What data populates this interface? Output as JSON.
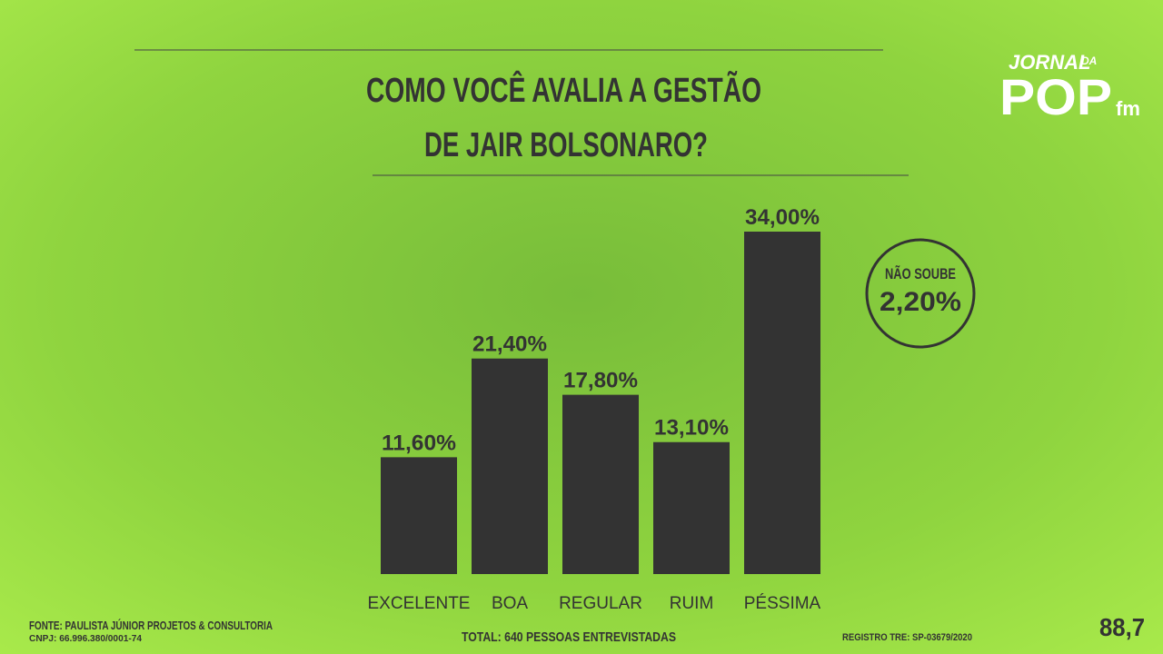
{
  "chart_data": {
    "type": "bar",
    "title": [
      "COMO VOCÊ AVALIA A GESTÃO",
      "DE JAIR BOLSONARO?"
    ],
    "categories": [
      "EXCELENTE",
      "BOA",
      "REGULAR",
      "RUIM",
      "PÉSSIMA"
    ],
    "values": [
      11.6,
      21.4,
      17.8,
      13.1,
      34.0
    ],
    "value_labels": [
      "11,60%",
      "21,40%",
      "17,80%",
      "13,10%",
      "34,00%"
    ],
    "color": "#333333",
    "annotation": {
      "label": "NÃO SOUBE",
      "value": 2.2,
      "value_label": "2,20%"
    },
    "footer": {
      "source": "FONTE: PAULISTA JÚNIOR PROJETOS & CONSULTORIA",
      "cnpj": "CNPJ: 66.996.380/0001-74",
      "total": "TOTAL: 640 PESSOAS ENTREVISTADAS",
      "registry": "REGISTRO TRE: SP-03679/2020"
    },
    "logo": {
      "top": "JORNAL",
      "small": "DA",
      "main": "POP",
      "suffix": "fm",
      "freq": "88,7"
    }
  }
}
